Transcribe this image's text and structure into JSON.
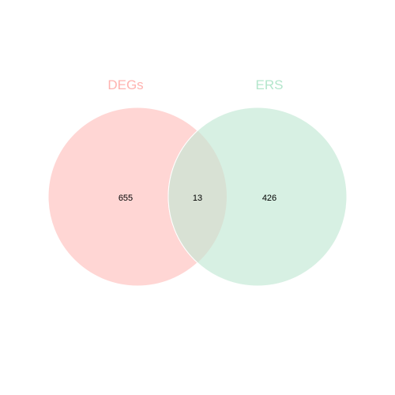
{
  "venn": {
    "sets": [
      {
        "name": "DEGs",
        "color": "#ffb3b0"
      },
      {
        "name": "ERS",
        "color": "#b3e6cc"
      }
    ],
    "regions": {
      "degs_only": "655",
      "intersection": "13",
      "ers_only": "426"
    },
    "colors": {
      "degs_fill": "#ffd6d4",
      "ers_fill": "#d7f0e3",
      "overlap_fill": "#d8e1d4"
    }
  }
}
